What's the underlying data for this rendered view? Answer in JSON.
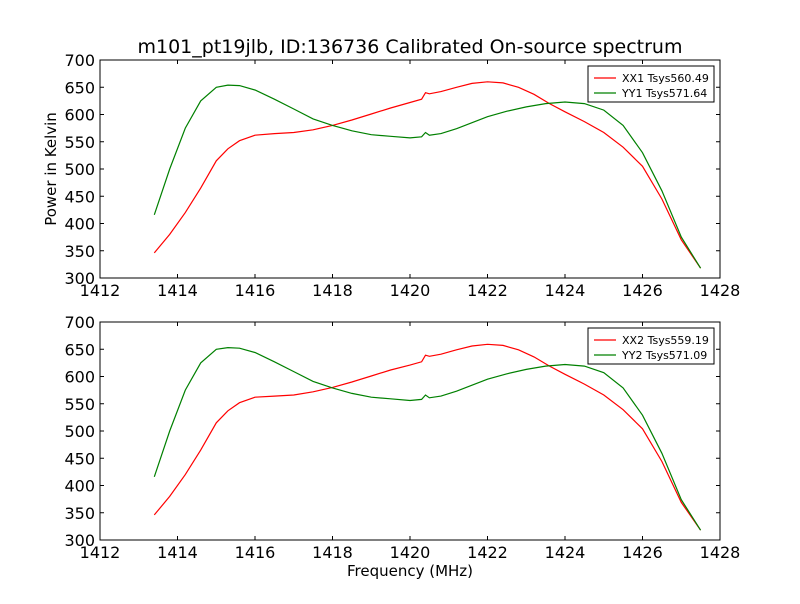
{
  "figure": {
    "title": "m101_pt19jlb, ID:136736 Calibrated On-source spectrum",
    "xlabel": "Frequency (MHz)",
    "ylabel": "Power in Kelvin"
  },
  "chart_data": [
    {
      "type": "line",
      "title": "m101_pt19jlb, ID:136736 Calibrated On-source spectrum",
      "xlabel": "",
      "ylabel": "Power in Kelvin",
      "xlim": [
        1412,
        1428
      ],
      "ylim": [
        300,
        700
      ],
      "xticks": [
        1412,
        1414,
        1416,
        1418,
        1420,
        1422,
        1424,
        1426,
        1428
      ],
      "yticks": [
        300,
        350,
        400,
        450,
        500,
        550,
        600,
        650,
        700
      ],
      "grid": false,
      "legend_position": "top-right",
      "series": [
        {
          "name": "XX1 Tsys560.49",
          "color": "#ff0000",
          "points": [
            [
              1413.4,
              346
            ],
            [
              1413.8,
              380
            ],
            [
              1414.2,
              420
            ],
            [
              1414.6,
              465
            ],
            [
              1415.0,
              515
            ],
            [
              1415.3,
              537
            ],
            [
              1415.6,
              552
            ],
            [
              1416.0,
              562
            ],
            [
              1416.5,
              565
            ],
            [
              1417.0,
              567
            ],
            [
              1417.5,
              572
            ],
            [
              1418.0,
              580
            ],
            [
              1418.5,
              590
            ],
            [
              1419.0,
              601
            ],
            [
              1419.5,
              612
            ],
            [
              1420.0,
              622
            ],
            [
              1420.3,
              628
            ],
            [
              1420.4,
              640
            ],
            [
              1420.5,
              638
            ],
            [
              1420.8,
              642
            ],
            [
              1421.2,
              650
            ],
            [
              1421.6,
              657
            ],
            [
              1422.0,
              660
            ],
            [
              1422.4,
              658
            ],
            [
              1422.8,
              650
            ],
            [
              1423.2,
              637
            ],
            [
              1423.6,
              620
            ],
            [
              1424.0,
              605
            ],
            [
              1424.5,
              587
            ],
            [
              1425.0,
              567
            ],
            [
              1425.5,
              540
            ],
            [
              1426.0,
              505
            ],
            [
              1426.5,
              445
            ],
            [
              1427.0,
              370
            ],
            [
              1427.5,
              318
            ]
          ]
        },
        {
          "name": "YY1 Tsys571.64",
          "color": "#008000",
          "points": [
            [
              1413.4,
              416
            ],
            [
              1413.8,
              500
            ],
            [
              1414.2,
              575
            ],
            [
              1414.6,
              625
            ],
            [
              1415.0,
              650
            ],
            [
              1415.3,
              654
            ],
            [
              1415.6,
              653
            ],
            [
              1416.0,
              645
            ],
            [
              1416.5,
              628
            ],
            [
              1417.0,
              610
            ],
            [
              1417.5,
              592
            ],
            [
              1418.0,
              580
            ],
            [
              1418.5,
              570
            ],
            [
              1419.0,
              563
            ],
            [
              1419.5,
              560
            ],
            [
              1420.0,
              557
            ],
            [
              1420.3,
              559
            ],
            [
              1420.4,
              567
            ],
            [
              1420.5,
              562
            ],
            [
              1420.8,
              565
            ],
            [
              1421.2,
              574
            ],
            [
              1421.6,
              585
            ],
            [
              1422.0,
              596
            ],
            [
              1422.5,
              606
            ],
            [
              1423.0,
              614
            ],
            [
              1423.5,
              620
            ],
            [
              1424.0,
              623
            ],
            [
              1424.5,
              620
            ],
            [
              1425.0,
              608
            ],
            [
              1425.5,
              580
            ],
            [
              1426.0,
              530
            ],
            [
              1426.5,
              460
            ],
            [
              1427.0,
              375
            ],
            [
              1427.5,
              318
            ]
          ]
        }
      ]
    },
    {
      "type": "line",
      "title": "",
      "xlabel": "Frequency (MHz)",
      "ylabel": "",
      "xlim": [
        1412,
        1428
      ],
      "ylim": [
        300,
        700
      ],
      "xticks": [
        1412,
        1414,
        1416,
        1418,
        1420,
        1422,
        1424,
        1426,
        1428
      ],
      "yticks": [
        300,
        350,
        400,
        450,
        500,
        550,
        600,
        650,
        700
      ],
      "grid": false,
      "legend_position": "top-right",
      "series": [
        {
          "name": "XX2 Tsys559.19",
          "color": "#ff0000",
          "points": [
            [
              1413.4,
              346
            ],
            [
              1413.8,
              380
            ],
            [
              1414.2,
              420
            ],
            [
              1414.6,
              465
            ],
            [
              1415.0,
              515
            ],
            [
              1415.3,
              537
            ],
            [
              1415.6,
              552
            ],
            [
              1416.0,
              562
            ],
            [
              1416.5,
              564
            ],
            [
              1417.0,
              566
            ],
            [
              1417.5,
              572
            ],
            [
              1418.0,
              580
            ],
            [
              1418.5,
              590
            ],
            [
              1419.0,
              601
            ],
            [
              1419.5,
              612
            ],
            [
              1420.0,
              621
            ],
            [
              1420.3,
              627
            ],
            [
              1420.4,
              639
            ],
            [
              1420.5,
              637
            ],
            [
              1420.8,
              641
            ],
            [
              1421.2,
              649
            ],
            [
              1421.6,
              656
            ],
            [
              1422.0,
              659
            ],
            [
              1422.4,
              657
            ],
            [
              1422.8,
              649
            ],
            [
              1423.2,
              636
            ],
            [
              1423.6,
              619
            ],
            [
              1424.0,
              604
            ],
            [
              1424.5,
              586
            ],
            [
              1425.0,
              566
            ],
            [
              1425.5,
              539
            ],
            [
              1426.0,
              504
            ],
            [
              1426.5,
              444
            ],
            [
              1427.0,
              369
            ],
            [
              1427.5,
              318
            ]
          ]
        },
        {
          "name": "YY2 Tsys571.09",
          "color": "#008000",
          "points": [
            [
              1413.4,
              416
            ],
            [
              1413.8,
              500
            ],
            [
              1414.2,
              575
            ],
            [
              1414.6,
              625
            ],
            [
              1415.0,
              650
            ],
            [
              1415.3,
              653
            ],
            [
              1415.6,
              652
            ],
            [
              1416.0,
              644
            ],
            [
              1416.5,
              627
            ],
            [
              1417.0,
              609
            ],
            [
              1417.5,
              591
            ],
            [
              1418.0,
              579
            ],
            [
              1418.5,
              569
            ],
            [
              1419.0,
              562
            ],
            [
              1419.5,
              559
            ],
            [
              1420.0,
              556
            ],
            [
              1420.3,
              558
            ],
            [
              1420.4,
              566
            ],
            [
              1420.5,
              561
            ],
            [
              1420.8,
              564
            ],
            [
              1421.2,
              573
            ],
            [
              1421.6,
              584
            ],
            [
              1422.0,
              595
            ],
            [
              1422.5,
              605
            ],
            [
              1423.0,
              613
            ],
            [
              1423.5,
              619
            ],
            [
              1424.0,
              622
            ],
            [
              1424.5,
              619
            ],
            [
              1425.0,
              607
            ],
            [
              1425.5,
              579
            ],
            [
              1426.0,
              529
            ],
            [
              1426.5,
              459
            ],
            [
              1427.0,
              374
            ],
            [
              1427.5,
              318
            ]
          ]
        }
      ]
    }
  ]
}
